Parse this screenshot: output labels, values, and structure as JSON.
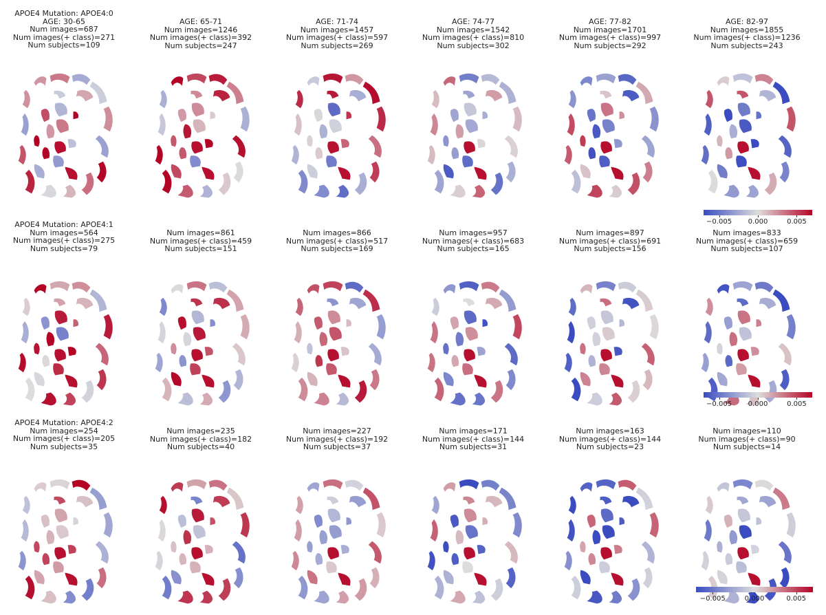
{
  "colormap": {
    "name": "coolwarm",
    "low": "#3b4cc0",
    "mid": "#dddddd",
    "high": "#b40426"
  },
  "rows": [
    {
      "panels": [
        {
          "title": [
            "APOE4 Mutation: APOE4:0",
            "AGE: 30-65",
            "Num images=687",
            "Num images(+ class)=271",
            "Num subjects=109"
          ]
        },
        {
          "title": [
            "AGE: 65-71",
            "Num images=1246",
            "Num images(+ class)=392",
            "Num subjects=247"
          ]
        },
        {
          "title": [
            "AGE: 71-74",
            "Num images=1457",
            "Num images(+ class)=597",
            "Num subjects=269"
          ]
        },
        {
          "title": [
            "AGE: 74-77",
            "Num images=1542",
            "Num images(+ class)=810",
            "Num subjects=302"
          ]
        },
        {
          "title": [
            "AGE: 77-82",
            "Num images=1701",
            "Num images(+ class)=997",
            "Num subjects=292"
          ]
        },
        {
          "title": [
            "AGE: 82-97",
            "Num images=1855",
            "Num images(+ class)=1236",
            "Num subjects=243"
          ]
        }
      ]
    },
    {
      "panels": [
        {
          "title": [
            "APOE4 Mutation: APOE4:1",
            "Num images=564",
            "Num images(+ class)=275",
            "Num subjects=79"
          ]
        },
        {
          "title": [
            "Num images=861",
            "Num images(+ class)=459",
            "Num subjects=151"
          ]
        },
        {
          "title": [
            "Num images=866",
            "Num images(+ class)=517",
            "Num subjects=169"
          ]
        },
        {
          "title": [
            "Num images=957",
            "Num images(+ class)=683",
            "Num subjects=165"
          ]
        },
        {
          "title": [
            "Num images=897",
            "Num images(+ class)=691",
            "Num subjects=156"
          ]
        },
        {
          "title": [
            "Num images=833",
            "Num images(+ class)=659",
            "Num subjects=107"
          ]
        }
      ]
    },
    {
      "panels": [
        {
          "title": [
            "APOE4 Mutation: APOE4:2",
            "Num images=254",
            "Num images(+ class)=205",
            "Num subjects=35"
          ]
        },
        {
          "title": [
            "Num images=235",
            "Num images(+ class)=182",
            "Num subjects=40"
          ]
        },
        {
          "title": [
            "Num images=227",
            "Num images(+ class)=192",
            "Num subjects=37"
          ]
        },
        {
          "title": [
            "Num images=171",
            "Num images(+ class)=144",
            "Num subjects=31"
          ]
        },
        {
          "title": [
            "Num images=163",
            "Num images(+ class)=144",
            "Num subjects=23"
          ]
        },
        {
          "title": [
            "Num images=110",
            "Num images(+ class)=90",
            "Num subjects=14"
          ]
        }
      ]
    }
  ],
  "colorbar": {
    "ticks": [
      -0.005,
      0.0,
      0.005
    ],
    "tick_labels": [
      "−0.005",
      "0.000",
      "0.005"
    ],
    "range": [
      -0.007,
      0.007
    ]
  }
}
